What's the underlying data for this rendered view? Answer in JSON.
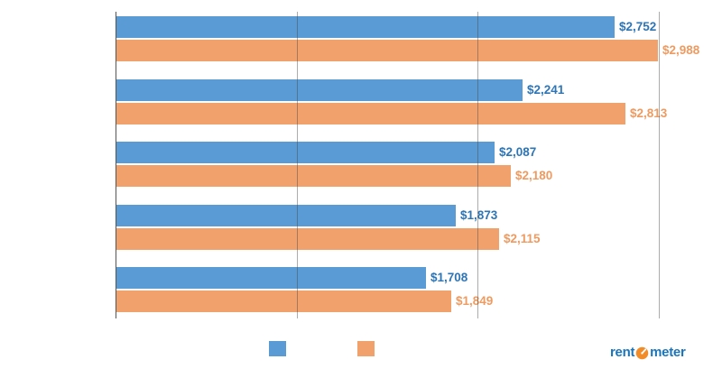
{
  "chart_data": {
    "type": "bar",
    "orientation": "horizontal",
    "title": "",
    "categories": [
      "",
      "",
      "",
      "",
      ""
    ],
    "series": [
      {
        "name": "series-blue",
        "color": "#5B9BD5",
        "label_color": "#2E75B6",
        "values": [
          2752,
          2241,
          2087,
          1873,
          1708
        ],
        "labels": [
          "$2,752",
          "$2,241",
          "$2,087",
          "$1,873",
          "$1,708"
        ]
      },
      {
        "name": "series-orange",
        "color": "#F0A16C",
        "label_color": "#ED9B61",
        "values": [
          2988,
          2813,
          2180,
          2115,
          1849
        ],
        "labels": [
          "$2,988",
          "$2,813",
          "$2,180",
          "$2,115",
          "$1,849"
        ]
      }
    ],
    "xlim": [
      0,
      3343
    ],
    "gridlines": [
      1000,
      2000,
      3000
    ],
    "grid": true,
    "legend_position": "bottom",
    "axis_color": "#555555"
  },
  "legend": {
    "items": [
      {
        "swatch_color": "#5B9BD5",
        "label": ""
      },
      {
        "swatch_color": "#F0A16C",
        "label": ""
      }
    ]
  },
  "brand": {
    "name": "rentometer",
    "text_prefix": "rent",
    "text_suffix": "meter",
    "text_color": "#1B75BB",
    "icon": "gauge-icon",
    "icon_color": "#F28C28"
  }
}
